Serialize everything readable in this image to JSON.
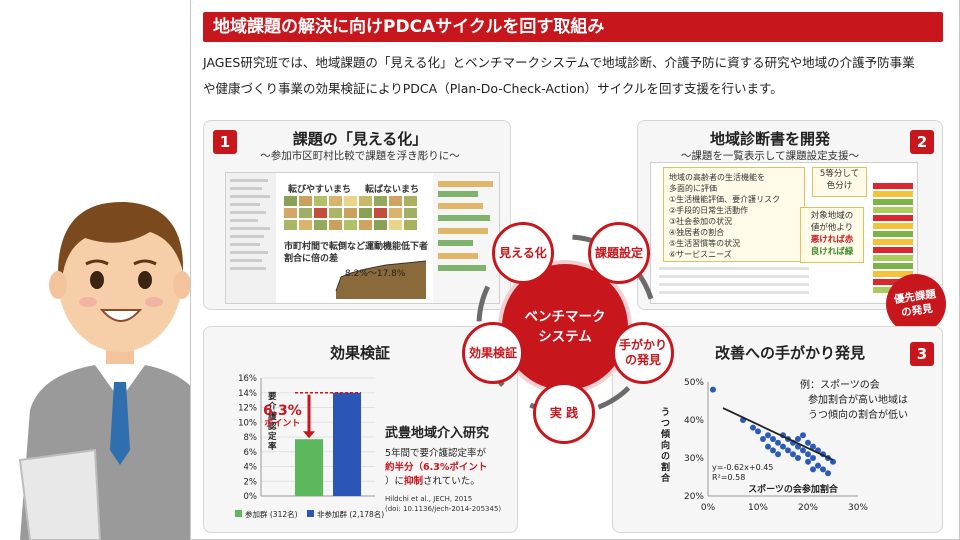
{
  "title": "地域課題の解決に向けPDCAサイクルを回す取組み",
  "intro": {
    "line1": "JAGES研究班では、地域課題の「見える化」とベンチマークシステムで地域診断、介護予防に資する研究や地域の介護予防事業",
    "line2": "や健康づくり事業の効果検証によりPDCA（Plan-Do-Check-Action）サイクルを回す支援を行います。"
  },
  "panel1": {
    "num": "1",
    "title": "課題の「見える化」",
    "subtitle": "～参加市区町村比較で課題を浮き彫りに～",
    "label_easy": "転びやすいまち",
    "label_hard": "転ばないまち",
    "caption1": "市町村間で転倒など運動機能低下者",
    "caption2": "割合に倍の差",
    "range": "8.2%～17.8%"
  },
  "panel2": {
    "num": "2",
    "title": "地域診断書を開発",
    "subtitle": "～課題を一覧表示して課題設定支援～",
    "checklist": [
      "地域の高齢者の生活機能を",
      "多面的に評価",
      "①生活機能評価、要介護リスク",
      "②手段的日常生活動作",
      "③社会参加の状況",
      "④独居者の割合",
      "⑤生活習慣等の状況",
      "⑥サービスニーズ"
    ],
    "note5_l1": "5等分して",
    "note5_l2": "色分け",
    "note_area_l1": "対象地域の",
    "note_area_l2": "値が他より",
    "note_area_l3": "悪ければ赤",
    "note_area_l4": "良ければ緑",
    "badge_l1": "優先課題",
    "badge_l2": "の発見"
  },
  "wheel": {
    "hub_l1": "ベンチマーク",
    "hub_l2": "システム",
    "visualize": "見える化",
    "issue": "課題設定",
    "clue_l1": "手がかり",
    "clue_l2": "の発見",
    "practice": "実 践",
    "effect": "効果検証"
  },
  "panel4": {
    "title": "効果検証",
    "ylabel": "要介護認定率",
    "annot_pct": "6.3%",
    "annot_pt": "ポイント",
    "study_title": "武豊地域介入研究",
    "study_l1": "5年間で要介護認定率が",
    "study_l2": "約半分（6.3%ポイント",
    "study_l3a": "）に",
    "study_l3b": "抑制",
    "study_l3c": "されていた。",
    "cite_l1": "Hildchi et al., JECH, 2015",
    "cite_l2": "(doi: 10.1136/jech-2014-205345)"
  },
  "panel3": {
    "num": "3",
    "title": "改善への手がかり発見",
    "note_l1": "例：スポーツの会",
    "note_l2": "参加割合が高い地域は",
    "note_l3": "うつ傾向の割合が低い",
    "ylabel": "うつ傾向の割合",
    "equation": "y=-0.62x+0.45",
    "r2": "R²=0.58"
  },
  "chart_data": [
    {
      "type": "bar",
      "categories": [
        "参加群 (312名)",
        "非参加群 (2,178名)"
      ],
      "values": [
        7.7,
        14.0
      ],
      "colors": [
        "#5cb85c",
        "#2c55b8"
      ],
      "ylabel": "要介護認定率",
      "yticks": [
        "0%",
        "2%",
        "4%",
        "6%",
        "8%",
        "10%",
        "12%",
        "14%",
        "16%"
      ],
      "ylim": [
        0,
        16
      ],
      "annotation": "6.3% ポイント",
      "legend": [
        "参加群 (312名)",
        "非参加群 (2,178名)"
      ],
      "legend_position": "bottom"
    },
    {
      "type": "scatter",
      "xlabel": "スポーツの会参加割合",
      "ylabel": "うつ傾向の割合",
      "xticks": [
        "0%",
        "10%",
        "20%",
        "30%"
      ],
      "yticks": [
        "20%",
        "30%",
        "40%",
        "50%"
      ],
      "xlim": [
        0,
        30
      ],
      "ylim": [
        20,
        50
      ],
      "trendline": {
        "slope": -0.62,
        "intercept": 45
      },
      "points": [
        [
          1,
          48
        ],
        [
          7,
          40
        ],
        [
          9,
          38
        ],
        [
          10,
          37
        ],
        [
          11,
          35
        ],
        [
          12,
          36
        ],
        [
          12,
          33
        ],
        [
          13,
          35
        ],
        [
          14,
          34
        ],
        [
          14,
          31
        ],
        [
          15,
          36
        ],
        [
          15,
          33
        ],
        [
          16,
          35
        ],
        [
          16,
          32
        ],
        [
          17,
          34
        ],
        [
          17,
          31
        ],
        [
          18,
          33
        ],
        [
          18,
          30
        ],
        [
          19,
          36
        ],
        [
          19,
          32
        ],
        [
          20,
          34
        ],
        [
          20,
          31
        ],
        [
          20,
          29
        ],
        [
          21,
          33
        ],
        [
          21,
          30
        ],
        [
          22,
          32
        ],
        [
          22,
          28
        ],
        [
          23,
          31
        ],
        [
          23,
          27
        ],
        [
          24,
          30
        ],
        [
          24,
          26
        ],
        [
          25,
          29
        ],
        [
          21,
          27
        ],
        [
          18,
          35
        ],
        [
          13,
          32
        ]
      ]
    }
  ]
}
